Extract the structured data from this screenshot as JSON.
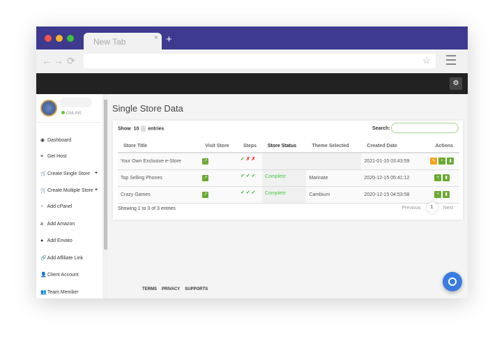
{
  "browser": {
    "tab_title": "New Tab",
    "close": "×",
    "new_tab": "+",
    "back": "←",
    "forward": "→",
    "reload": "⟳",
    "star": "☆",
    "settings_icon": "⚙"
  },
  "colors": {
    "titlebar": "#3d3a8f",
    "accent_green": "#6aaa33",
    "edit_orange": "#f7a21b",
    "chat_blue": "#3a7be0"
  },
  "user": {
    "status": "ONLINE"
  },
  "sidebar": {
    "items": [
      {
        "label": "Dashboard",
        "icon": "◉"
      },
      {
        "label": "Get Host",
        "icon": "≡"
      },
      {
        "label": "Create Single Store",
        "icon": "🛒",
        "plus": "+"
      },
      {
        "label": "Create Multiple Store",
        "icon": "🛒",
        "plus": "+"
      },
      {
        "label": "Add cPanel",
        "icon": "~"
      },
      {
        "label": "Add Amazon",
        "icon": "a"
      },
      {
        "label": "Add Envato",
        "icon": "●"
      },
      {
        "label": "Add Affiliate Link",
        "icon": "🔗"
      },
      {
        "label": "Client Account",
        "icon": "👤"
      },
      {
        "label": "Team Member",
        "icon": "👥"
      }
    ]
  },
  "main": {
    "title": "Single Store Data",
    "show_label": "Show",
    "show_value": "10",
    "entries_label": "entries",
    "search_label": "Search:",
    "columns": [
      "Store Title",
      "Visit Store",
      "Steps",
      "Store Status",
      "Theme Selected",
      "Created Date",
      "Actions"
    ],
    "rows": [
      {
        "title": "Your Own Exclusive e-Store",
        "steps": [
          "✓",
          "✗",
          "✗"
        ],
        "status": "",
        "theme": "",
        "date": "2021-01-15 03:43:59",
        "actions": [
          "edit",
          "assign",
          "delete"
        ]
      },
      {
        "title": "Top Selling Phones",
        "steps": [
          "✓",
          "✓",
          "✓"
        ],
        "status": "Complete",
        "theme": "Marinate",
        "date": "2020-12-15 05:41:12",
        "actions": [
          "assign",
          "delete"
        ]
      },
      {
        "title": "Crazy Games",
        "steps": [
          "✓",
          "✓",
          "✓"
        ],
        "status": "Complete",
        "theme": "Cambium",
        "date": "2020-12-15 04:53:58",
        "actions": [
          "assign",
          "delete"
        ]
      }
    ],
    "info": "Showing 1 to 3 of 3 entries",
    "prev": "Previous",
    "page": "1",
    "next": "Next"
  },
  "footer": {
    "links": [
      "TERMS",
      "PRIVACY",
      "SUPPORTS"
    ]
  }
}
